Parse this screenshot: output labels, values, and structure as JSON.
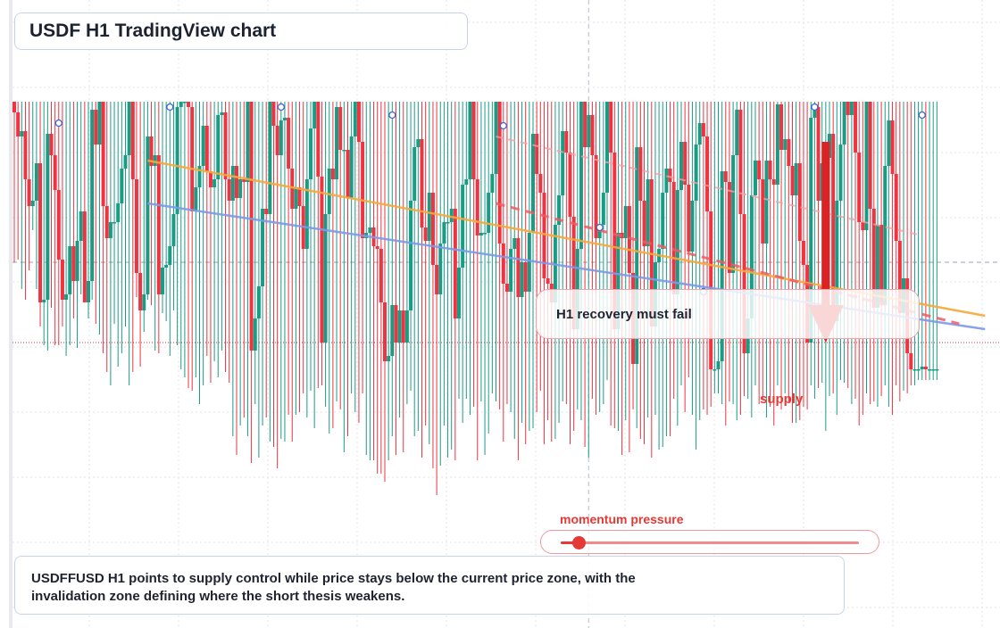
{
  "title": "USDF H1 TradingView chart",
  "callout": "H1 recovery must fail",
  "supply_label": "supply",
  "momentum": {
    "label": "momentum pressure",
    "level": 0.06
  },
  "summary": "USDFFUSD H1 points to supply control while price stays below the current price zone, with the invalidation zone defining where the short thesis weakens.",
  "colors": {
    "bull": "#1a9c84",
    "bear": "#ef3340",
    "orange_line": "#f6a93b",
    "blue_line": "#7d9ae8",
    "arrow": "#dd2226",
    "accent_text": "#e53935"
  },
  "chart_data": {
    "type": "candlestick",
    "ylim": [
      0,
      100
    ],
    "candles": [
      [
        100,
        96,
        100,
        40
      ],
      [
        96,
        87,
        100,
        41
      ],
      [
        87,
        89,
        100,
        30
      ],
      [
        89,
        71,
        100,
        26
      ],
      [
        71,
        61,
        100,
        37
      ],
      [
        61,
        63,
        100,
        52
      ],
      [
        63,
        77,
        100,
        30
      ],
      [
        77,
        25,
        100,
        16
      ],
      [
        25,
        26,
        100,
        9
      ],
      [
        26,
        88,
        100,
        7
      ],
      [
        88,
        80,
        100,
        23
      ],
      [
        80,
        67,
        100,
        9
      ],
      [
        67,
        41,
        100,
        9
      ],
      [
        41,
        26,
        100,
        16
      ],
      [
        26,
        28,
        100,
        5
      ],
      [
        28,
        46,
        100,
        9
      ],
      [
        46,
        33,
        100,
        19
      ],
      [
        33,
        48,
        100,
        8
      ],
      [
        48,
        59,
        100,
        28
      ],
      [
        59,
        25,
        100,
        29
      ],
      [
        25,
        33,
        100,
        19
      ],
      [
        33,
        97,
        100,
        26
      ],
      [
        97,
        84,
        100,
        17
      ],
      [
        84,
        100,
        100,
        13
      ],
      [
        100,
        61,
        100,
        6
      ],
      [
        61,
        49,
        100,
        -1
      ],
      [
        49,
        55,
        100,
        -6
      ],
      [
        55,
        55,
        100,
        17
      ],
      [
        55,
        62,
        100,
        1
      ],
      [
        62,
        75,
        100,
        6
      ],
      [
        75,
        80,
        100,
        16
      ],
      [
        80,
        100,
        100,
        -6
      ],
      [
        100,
        71,
        100,
        -1
      ],
      [
        71,
        36,
        100,
        27
      ],
      [
        36,
        22,
        100,
        1
      ],
      [
        22,
        28,
        100,
        14
      ],
      [
        28,
        87,
        100,
        26
      ],
      [
        87,
        76,
        100,
        24
      ],
      [
        76,
        80,
        100,
        7
      ],
      [
        80,
        28,
        100,
        6
      ],
      [
        28,
        38,
        100,
        21
      ],
      [
        38,
        39,
        100,
        18
      ],
      [
        39,
        46,
        100,
        5
      ],
      [
        46,
        58,
        100,
        22
      ],
      [
        58,
        98,
        100,
        9
      ],
      [
        98,
        100,
        100,
        0
      ],
      [
        100,
        100,
        100,
        -3
      ],
      [
        100,
        98,
        100,
        -7
      ],
      [
        98,
        59,
        100,
        -8
      ],
      [
        59,
        68,
        100,
        -3
      ],
      [
        68,
        76,
        100,
        -13
      ],
      [
        76,
        91,
        100,
        -6
      ],
      [
        91,
        74,
        100,
        5
      ],
      [
        74,
        68,
        100,
        -5
      ],
      [
        68,
        71,
        100,
        3
      ],
      [
        71,
        95,
        100,
        -3
      ],
      [
        95,
        96,
        100,
        7
      ],
      [
        96,
        71,
        100,
        -1
      ],
      [
        71,
        63,
        100,
        -5
      ],
      [
        63,
        76,
        100,
        -25
      ],
      [
        76,
        64,
        100,
        -32
      ],
      [
        64,
        71,
        100,
        -21
      ],
      [
        71,
        70,
        100,
        -18
      ],
      [
        70,
        100,
        100,
        -25
      ],
      [
        100,
        7,
        100,
        -35
      ],
      [
        7,
        19,
        100,
        -13
      ],
      [
        19,
        31,
        100,
        -33
      ],
      [
        31,
        60,
        100,
        -21
      ],
      [
        60,
        58,
        100,
        -18
      ],
      [
        58,
        100,
        100,
        -27
      ],
      [
        100,
        91,
        100,
        -29
      ],
      [
        91,
        80,
        100,
        -37
      ],
      [
        80,
        93,
        100,
        -26
      ],
      [
        93,
        94,
        100,
        -27
      ],
      [
        94,
        75,
        100,
        -17
      ],
      [
        75,
        60,
        100,
        -27
      ],
      [
        60,
        68,
        100,
        -17
      ],
      [
        68,
        61,
        100,
        -16
      ],
      [
        61,
        45,
        100,
        -9
      ],
      [
        45,
        71,
        100,
        -18
      ],
      [
        71,
        90,
        100,
        -8
      ],
      [
        90,
        100,
        100,
        -22
      ],
      [
        100,
        72,
        100,
        -7
      ],
      [
        72,
        10,
        100,
        -6
      ],
      [
        10,
        58,
        100,
        -14
      ],
      [
        58,
        75,
        100,
        -24
      ],
      [
        75,
        71,
        100,
        -22
      ],
      [
        71,
        98,
        100,
        -12
      ],
      [
        98,
        82,
        100,
        -15
      ],
      [
        82,
        82,
        100,
        -31
      ],
      [
        82,
        64,
        100,
        -25
      ],
      [
        64,
        87,
        100,
        -9
      ],
      [
        87,
        100,
        100,
        -16
      ],
      [
        100,
        85,
        100,
        -20
      ],
      [
        85,
        49,
        100,
        -9
      ],
      [
        49,
        51,
        100,
        -32
      ],
      [
        51,
        53,
        100,
        -34
      ],
      [
        53,
        46,
        100,
        -34
      ],
      [
        46,
        45,
        100,
        -39
      ],
      [
        45,
        25,
        100,
        -39
      ],
      [
        25,
        3,
        100,
        -42
      ],
      [
        3,
        5,
        100,
        -34
      ],
      [
        5,
        24,
        100,
        -25
      ],
      [
        24,
        10,
        100,
        -32
      ],
      [
        10,
        22,
        100,
        -18
      ],
      [
        22,
        10,
        100,
        -31
      ],
      [
        10,
        22,
        100,
        -13
      ],
      [
        22,
        63,
        100,
        -8
      ],
      [
        63,
        83,
        100,
        -25
      ],
      [
        83,
        86,
        100,
        -23
      ],
      [
        86,
        53,
        100,
        -33
      ],
      [
        53,
        48,
        100,
        -21
      ],
      [
        48,
        66,
        100,
        -28
      ],
      [
        66,
        39,
        100,
        -37
      ],
      [
        39,
        28,
        100,
        -47
      ],
      [
        28,
        47,
        100,
        -36
      ],
      [
        47,
        55,
        100,
        -21
      ],
      [
        55,
        55,
        100,
        -33
      ],
      [
        55,
        60,
        100,
        -30
      ],
      [
        60,
        19,
        100,
        -34
      ],
      [
        19,
        38,
        100,
        -11
      ],
      [
        38,
        69,
        100,
        -20
      ],
      [
        69,
        71,
        100,
        -11
      ],
      [
        71,
        100,
        100,
        -17
      ],
      [
        100,
        71,
        100,
        -14
      ],
      [
        71,
        50,
        100,
        -34
      ],
      [
        50,
        51,
        100,
        -12
      ],
      [
        51,
        51,
        100,
        -32
      ],
      [
        51,
        66,
        100,
        -24
      ],
      [
        66,
        73,
        100,
        -9
      ],
      [
        73,
        100,
        100,
        -12
      ],
      [
        100,
        47,
        100,
        -15
      ],
      [
        47,
        32,
        100,
        -27
      ],
      [
        32,
        29,
        100,
        -13
      ],
      [
        29,
        45,
        100,
        -16
      ],
      [
        45,
        49,
        100,
        -26
      ],
      [
        49,
        27,
        100,
        -34
      ],
      [
        27,
        40,
        100,
        -20
      ],
      [
        40,
        29,
        100,
        -28
      ],
      [
        29,
        51,
        100,
        -23
      ],
      [
        51,
        88,
        100,
        -22
      ],
      [
        88,
        73,
        100,
        -16
      ],
      [
        73,
        66,
        100,
        -8
      ],
      [
        66,
        34,
        100,
        -28
      ],
      [
        34,
        32,
        100,
        -19
      ],
      [
        32,
        25,
        100,
        -27
      ],
      [
        25,
        54,
        100,
        -26
      ],
      [
        54,
        65,
        100,
        -20
      ],
      [
        65,
        89,
        100,
        -12
      ],
      [
        89,
        81,
        100,
        -13
      ],
      [
        81,
        57,
        100,
        -28
      ],
      [
        57,
        15,
        100,
        -23
      ],
      [
        15,
        45,
        100,
        -15
      ],
      [
        45,
        100,
        100,
        -19
      ],
      [
        100,
        83,
        100,
        -29
      ],
      [
        83,
        95,
        100,
        -33
      ],
      [
        95,
        80,
        100,
        -11
      ],
      [
        80,
        49,
        100,
        -17
      ],
      [
        49,
        54,
        100,
        -16
      ],
      [
        54,
        66,
        100,
        -13
      ],
      [
        66,
        100,
        100,
        -4
      ],
      [
        100,
        81,
        100,
        -21
      ],
      [
        81,
        15,
        100,
        -22
      ],
      [
        15,
        51,
        100,
        -23
      ],
      [
        51,
        49,
        100,
        -32
      ],
      [
        49,
        61,
        100,
        -19
      ],
      [
        61,
        36,
        100,
        -31
      ],
      [
        36,
        2,
        100,
        -15
      ],
      [
        2,
        83,
        100,
        -22
      ],
      [
        83,
        63,
        100,
        -26
      ],
      [
        63,
        46,
        100,
        -28
      ],
      [
        46,
        71,
        100,
        -18
      ],
      [
        71,
        16,
        100,
        -33
      ],
      [
        16,
        40,
        100,
        -17
      ],
      [
        40,
        45,
        100,
        -30
      ],
      [
        45,
        66,
        100,
        -29
      ],
      [
        66,
        75,
        100,
        -25
      ],
      [
        75,
        70,
        100,
        -25
      ],
      [
        70,
        28,
        100,
        -11
      ],
      [
        28,
        67,
        100,
        -21
      ],
      [
        67,
        85,
        100,
        -6
      ],
      [
        85,
        69,
        100,
        -16
      ],
      [
        69,
        44,
        100,
        -3
      ],
      [
        44,
        63,
        100,
        -17
      ],
      [
        63,
        84,
        100,
        -30
      ],
      [
        84,
        92,
        100,
        -19
      ],
      [
        92,
        87,
        100,
        -15
      ],
      [
        87,
        59,
        100,
        -17
      ],
      [
        59,
        0,
        100,
        -14
      ],
      [
        0,
        0,
        100,
        -9
      ],
      [
        0,
        3,
        100,
        -9
      ],
      [
        3,
        74,
        100,
        -13
      ],
      [
        74,
        70,
        100,
        -21
      ],
      [
        70,
        36,
        100,
        -12
      ],
      [
        36,
        80,
        100,
        -13
      ],
      [
        80,
        97,
        100,
        -19
      ],
      [
        97,
        58,
        100,
        -17
      ],
      [
        58,
        6,
        100,
        -10
      ],
      [
        6,
        19,
        100,
        -11
      ],
      [
        19,
        65,
        100,
        -18
      ],
      [
        65,
        78,
        100,
        -6
      ],
      [
        78,
        71,
        100,
        -13
      ],
      [
        71,
        47,
        100,
        -11
      ],
      [
        47,
        78,
        100,
        -18
      ],
      [
        78,
        71,
        100,
        -14
      ],
      [
        71,
        69,
        100,
        -21
      ],
      [
        69,
        99,
        100,
        -6
      ],
      [
        99,
        82,
        100,
        -15
      ],
      [
        82,
        86,
        100,
        -9
      ],
      [
        86,
        76,
        100,
        -12
      ],
      [
        76,
        65,
        100,
        -20
      ],
      [
        65,
        77,
        100,
        -20
      ],
      [
        77,
        48,
        100,
        -19
      ],
      [
        48,
        39,
        100,
        -14
      ],
      [
        39,
        10,
        100,
        -15
      ],
      [
        10,
        94,
        100,
        -6
      ],
      [
        94,
        98,
        100,
        -11
      ],
      [
        98,
        63,
        100,
        -7
      ],
      [
        63,
        77,
        100,
        -5
      ],
      [
        77,
        79,
        100,
        -23
      ],
      [
        79,
        88,
        100,
        -10
      ],
      [
        88,
        18,
        100,
        -9
      ],
      [
        18,
        63,
        100,
        -17
      ],
      [
        63,
        84,
        100,
        -4
      ],
      [
        84,
        100,
        100,
        -5
      ],
      [
        100,
        95,
        100,
        -7
      ],
      [
        95,
        100,
        100,
        -13
      ],
      [
        100,
        81,
        100,
        -11
      ],
      [
        81,
        55,
        100,
        -21
      ],
      [
        55,
        52,
        100,
        -17
      ],
      [
        52,
        100,
        100,
        -9
      ],
      [
        100,
        60,
        100,
        -13
      ],
      [
        60,
        23,
        100,
        -12
      ],
      [
        23,
        54,
        100,
        -14
      ],
      [
        54,
        24,
        100,
        -10
      ],
      [
        24,
        76,
        100,
        -6
      ],
      [
        76,
        93,
        100,
        -14
      ],
      [
        93,
        73,
        100,
        -17
      ],
      [
        73,
        48,
        100,
        -6
      ],
      [
        48,
        21,
        100,
        -12
      ],
      [
        21,
        34,
        100,
        -8
      ],
      [
        34,
        6,
        100,
        -9
      ],
      [
        6,
        0,
        100,
        -6
      ],
      [
        0,
        0,
        100,
        -6
      ],
      [
        0,
        0,
        100,
        -4
      ],
      [
        0,
        1,
        100,
        -4
      ],
      [
        1,
        0,
        100,
        -4
      ],
      [
        0,
        0,
        100,
        -4
      ],
      [
        0,
        0,
        100,
        -4
      ],
      [
        0,
        0,
        100,
        -4
      ]
    ],
    "trendlines": [
      {
        "name": "orange",
        "from": [
          36,
          78
        ],
        "to": [
          262,
          20
        ]
      },
      {
        "name": "blue",
        "from": [
          36,
          62
        ],
        "to": [
          262,
          15
        ]
      },
      {
        "name": "red-dash",
        "from": [
          130,
          62
        ],
        "to": [
          255,
          17
        ]
      },
      {
        "name": "pink-dash",
        "from": [
          130,
          87
        ],
        "to": [
          245,
          50
        ]
      }
    ],
    "markers": [
      [
        12,
        92
      ],
      [
        42,
        98
      ],
      [
        72,
        98
      ],
      [
        102,
        95
      ],
      [
        132,
        91
      ],
      [
        158,
        53
      ],
      [
        186,
        29
      ],
      [
        216,
        98
      ],
      [
        245,
        95
      ]
    ],
    "gray_level": 40,
    "dotted_level": 10,
    "vline_index": 155,
    "arrow": {
      "index": 219,
      "from": 85,
      "to": 10
    }
  }
}
